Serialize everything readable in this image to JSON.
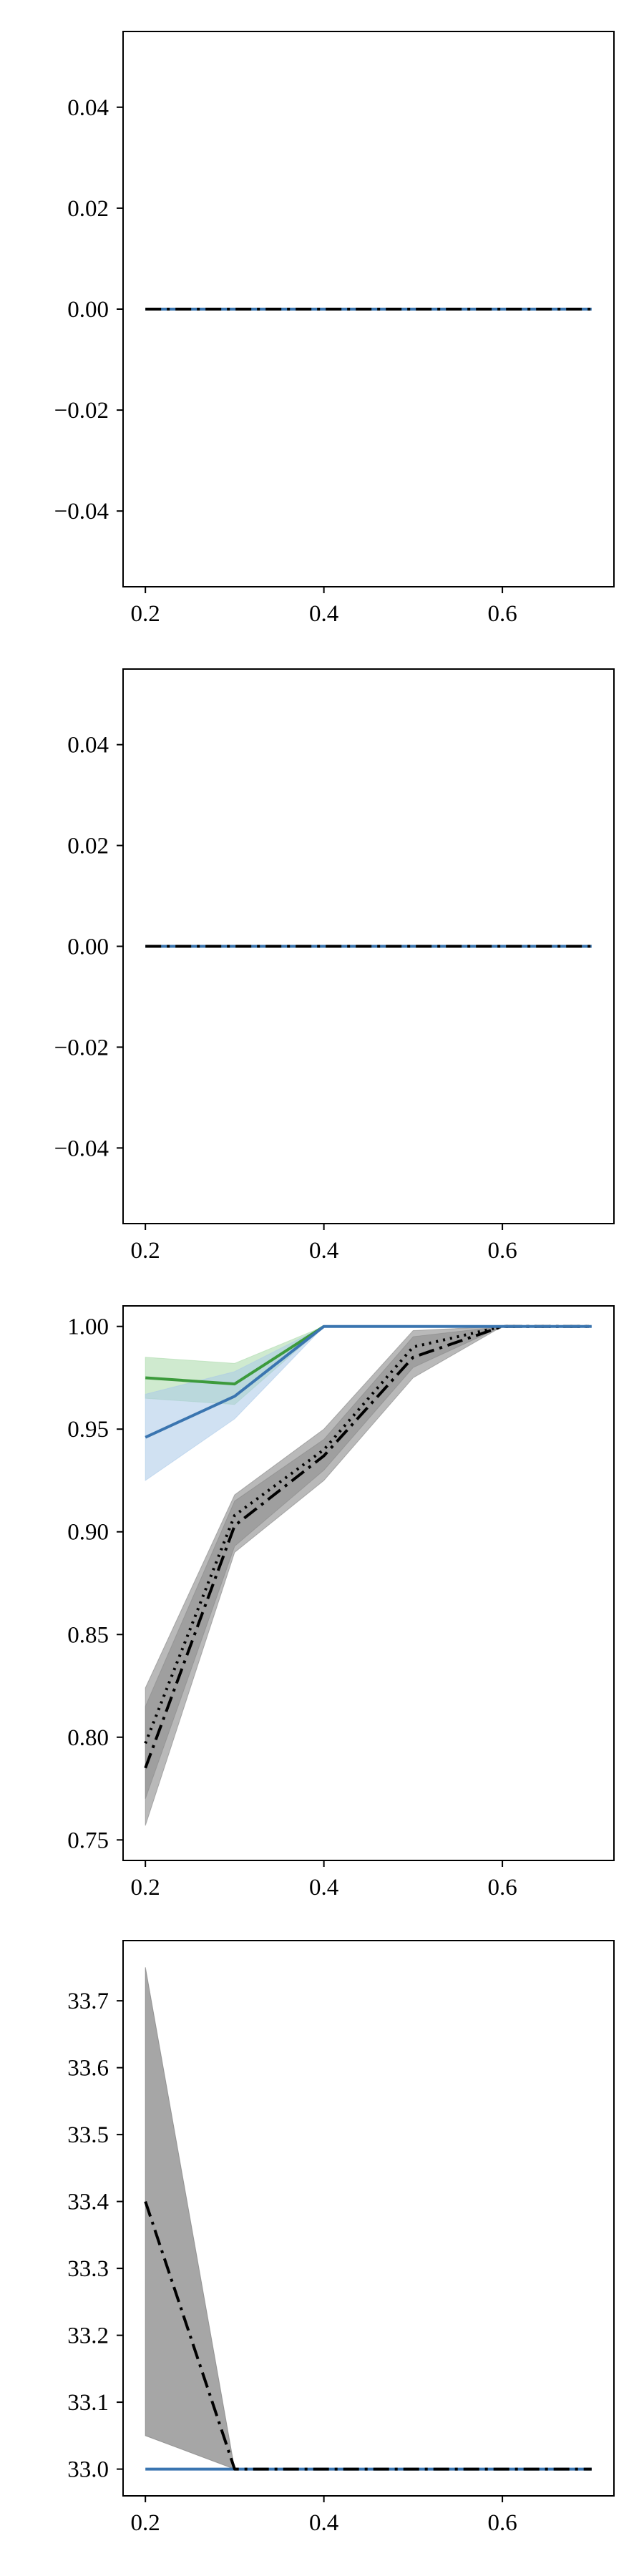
{
  "figure": {
    "background": "#ffffff"
  },
  "colors": {
    "black": "#000000",
    "blue": "#3a75b0",
    "green": "#3c9a3c",
    "gray": "#808080",
    "light_blue": "#a9c8e8",
    "light_green": "#a8d8a8"
  },
  "chart_data": [
    {
      "type": "line",
      "title": "",
      "xlabel": "",
      "ylabel": "",
      "xlim": [
        0.175,
        0.725
      ],
      "ylim": [
        -0.055,
        0.055
      ],
      "xticks": [
        0.2,
        0.4,
        0.6
      ],
      "xtick_labels": [
        "0.2",
        "0.4",
        "0.6"
      ],
      "yticks": [
        0.04,
        0.02,
        0.0,
        -0.02,
        -0.04
      ],
      "ytick_labels": [
        "0.04",
        "0.02",
        "0.00",
        "−0.02",
        "−0.04"
      ],
      "grid": false,
      "legend": false,
      "series": [
        {
          "color": "#3a75b0",
          "style": "solid",
          "width": 4,
          "x": [
            0.2,
            0.3,
            0.4,
            0.5,
            0.6,
            0.7
          ],
          "y": [
            0,
            0,
            0,
            0,
            0,
            0
          ]
        },
        {
          "color": "#000000",
          "style": "dashdot",
          "width": 4,
          "x": [
            0.2,
            0.3,
            0.4,
            0.5,
            0.6,
            0.7
          ],
          "y": [
            0,
            0,
            0,
            0,
            0,
            0
          ]
        }
      ]
    },
    {
      "type": "line",
      "title": "",
      "xlabel": "",
      "ylabel": "",
      "xlim": [
        0.175,
        0.725
      ],
      "ylim": [
        -0.055,
        0.055
      ],
      "xticks": [
        0.2,
        0.4,
        0.6
      ],
      "xtick_labels": [
        "0.2",
        "0.4",
        "0.6"
      ],
      "yticks": [
        0.04,
        0.02,
        0.0,
        -0.02,
        -0.04
      ],
      "ytick_labels": [
        "0.04",
        "0.02",
        "0.00",
        "−0.02",
        "−0.04"
      ],
      "grid": false,
      "legend": false,
      "series": [
        {
          "color": "#3a75b0",
          "style": "solid",
          "width": 4,
          "x": [
            0.2,
            0.3,
            0.4,
            0.5,
            0.6,
            0.7
          ],
          "y": [
            0,
            0,
            0,
            0,
            0,
            0
          ]
        },
        {
          "color": "#000000",
          "style": "dashdot",
          "width": 4,
          "x": [
            0.2,
            0.3,
            0.4,
            0.5,
            0.6,
            0.7
          ],
          "y": [
            0,
            0,
            0,
            0,
            0,
            0
          ]
        }
      ]
    },
    {
      "type": "line",
      "title": "",
      "xlabel": "",
      "ylabel": "",
      "xlim": [
        0.175,
        0.725
      ],
      "ylim": [
        0.74,
        1.01
      ],
      "xticks": [
        0.2,
        0.4,
        0.6
      ],
      "xtick_labels": [
        "0.2",
        "0.4",
        "0.6"
      ],
      "yticks": [
        1.0,
        0.95,
        0.9,
        0.85,
        0.8,
        0.75
      ],
      "ytick_labels": [
        "1.00",
        "0.95",
        "0.90",
        "0.85",
        "0.80",
        "0.75"
      ],
      "grid": false,
      "legend": false,
      "bands": [
        {
          "color": "#a8d8a8",
          "opacity": 0.55,
          "x": [
            0.2,
            0.3,
            0.4
          ],
          "lower": [
            0.965,
            0.962,
            1.0
          ],
          "upper": [
            0.985,
            0.982,
            1.0
          ]
        },
        {
          "color": "#a9c8e8",
          "opacity": 0.55,
          "x": [
            0.2,
            0.3,
            0.4
          ],
          "lower": [
            0.925,
            0.955,
            1.0
          ],
          "upper": [
            0.967,
            0.978,
            1.0
          ]
        },
        {
          "color": "#808080",
          "opacity": 0.55,
          "x": [
            0.2,
            0.3,
            0.4,
            0.5,
            0.6,
            0.7
          ],
          "lower": [
            0.757,
            0.89,
            0.925,
            0.975,
            1.0,
            1.0
          ],
          "upper": [
            0.824,
            0.918,
            0.95,
            0.998,
            1.0,
            1.0
          ]
        },
        {
          "color": "#808080",
          "opacity": 0.45,
          "x": [
            0.2,
            0.3,
            0.4,
            0.5,
            0.6,
            0.7
          ],
          "lower": [
            0.77,
            0.893,
            0.93,
            0.98,
            1.0,
            1.0
          ],
          "upper": [
            0.815,
            0.915,
            0.945,
            0.995,
            1.0,
            1.0
          ]
        }
      ],
      "series": [
        {
          "color": "#3c9a3c",
          "style": "solid",
          "width": 4,
          "x": [
            0.2,
            0.3,
            0.4
          ],
          "y": [
            0.975,
            0.972,
            1.0
          ]
        },
        {
          "color": "#000000",
          "style": "dotted",
          "width": 4,
          "x": [
            0.2,
            0.3,
            0.4,
            0.5,
            0.6,
            0.7
          ],
          "y": [
            0.797,
            0.908,
            0.94,
            0.99,
            1.0,
            1.0
          ]
        },
        {
          "color": "#000000",
          "style": "dashdot",
          "width": 4,
          "x": [
            0.2,
            0.3,
            0.4,
            0.5,
            0.6,
            0.7
          ],
          "y": [
            0.785,
            0.903,
            0.937,
            0.985,
            1.0,
            1.0
          ]
        },
        {
          "color": "#3a75b0",
          "style": "solid",
          "width": 4,
          "x": [
            0.2,
            0.3,
            0.4,
            0.5,
            0.6,
            0.7
          ],
          "y": [
            0.946,
            0.966,
            1.0,
            1.0,
            1.0,
            1.0
          ]
        }
      ]
    },
    {
      "type": "line",
      "title": "",
      "xlabel": "",
      "ylabel": "",
      "xlim": [
        0.175,
        0.725
      ],
      "ylim": [
        32.96,
        33.79
      ],
      "xticks": [
        0.2,
        0.4,
        0.6
      ],
      "xtick_labels": [
        "0.2",
        "0.4",
        "0.6"
      ],
      "yticks": [
        33.7,
        33.6,
        33.5,
        33.4,
        33.3,
        33.2,
        33.1,
        33.0
      ],
      "ytick_labels": [
        "33.7",
        "33.6",
        "33.5",
        "33.4",
        "33.3",
        "33.2",
        "33.1",
        "33.0"
      ],
      "grid": false,
      "legend": false,
      "bands": [
        {
          "color": "#808080",
          "opacity": 0.7,
          "x": [
            0.2,
            0.3,
            0.4,
            0.5,
            0.6,
            0.7
          ],
          "lower": [
            33.05,
            33.0,
            33.0,
            33.0,
            33.0,
            33.0
          ],
          "upper": [
            33.75,
            33.0,
            33.0,
            33.0,
            33.0,
            33.0
          ]
        }
      ],
      "series": [
        {
          "color": "#3a75b0",
          "style": "solid",
          "width": 4,
          "x": [
            0.2,
            0.3,
            0.4,
            0.5,
            0.6,
            0.7
          ],
          "y": [
            33.0,
            33.0,
            33.0,
            33.0,
            33.0,
            33.0
          ]
        },
        {
          "color": "#000000",
          "style": "dashdot",
          "width": 4,
          "x": [
            0.2,
            0.3,
            0.4,
            0.5,
            0.6,
            0.7
          ],
          "y": [
            33.4,
            33.0,
            33.0,
            33.0,
            33.0,
            33.0
          ]
        }
      ]
    }
  ]
}
